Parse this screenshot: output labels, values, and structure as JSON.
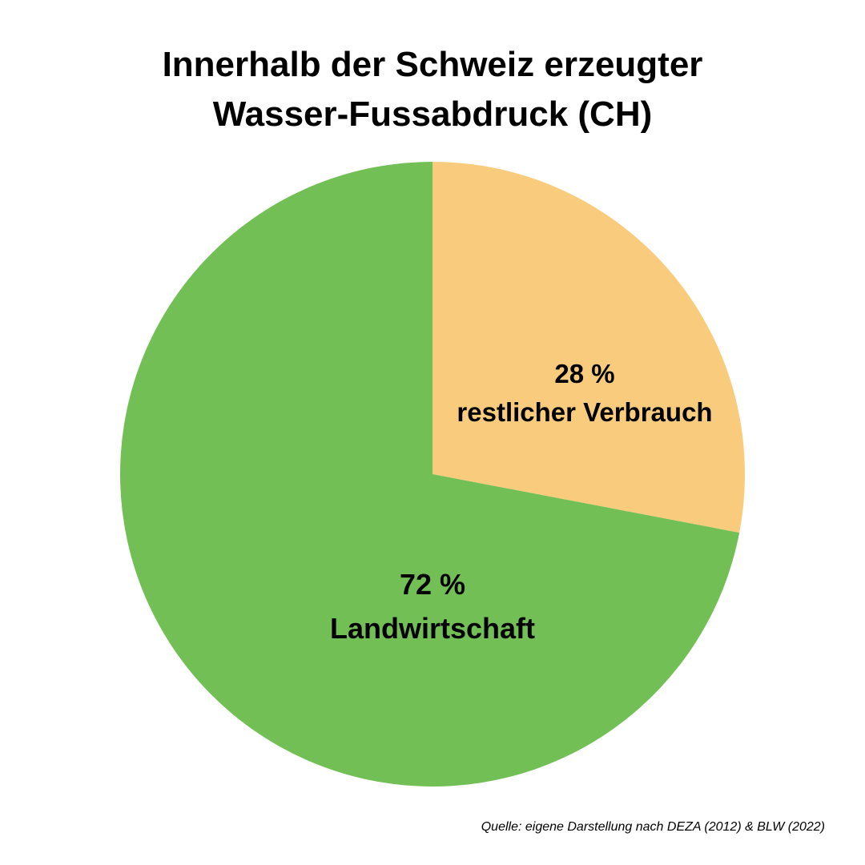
{
  "chart_data": {
    "type": "pie",
    "title": [
      "Innerhalb der Schweiz erzeugter",
      "Wasser-Fussabdruck (CH)"
    ],
    "slices": [
      {
        "value": 28,
        "value_label": "28 %",
        "label": "restlicher Verbrauch",
        "color": "#F8CC7C"
      },
      {
        "value": 72,
        "value_label": "72 %",
        "label": "Landwirtschaft",
        "color": "#72BF55"
      }
    ],
    "start": "12 o'clock",
    "direction": "clockwise",
    "legend": "none",
    "source": "Quelle: eigene Darstellung nach DEZA (2012) & BLW (2022)"
  }
}
